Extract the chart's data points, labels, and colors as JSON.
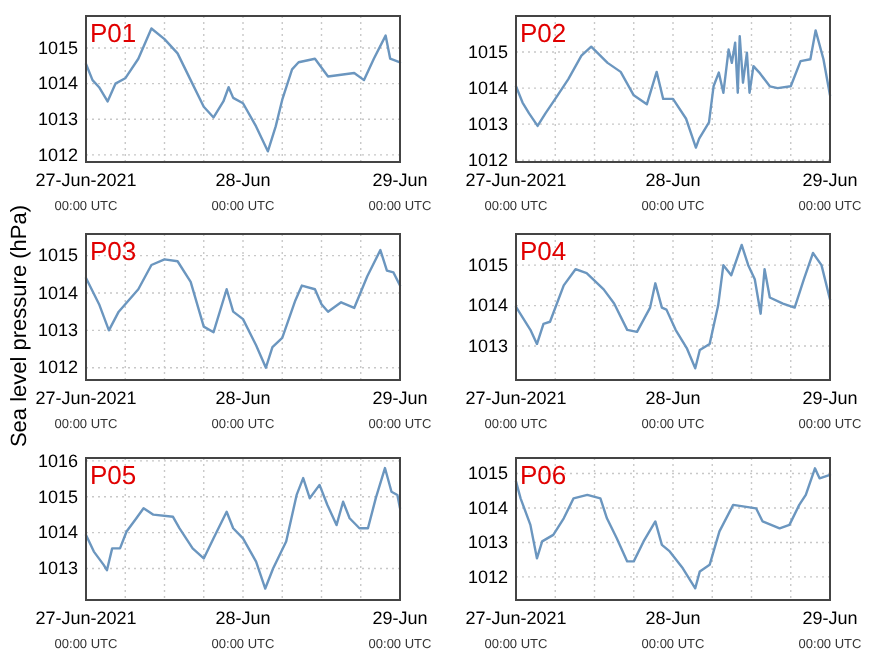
{
  "chart_data": [
    {
      "type": "line",
      "title": "P01",
      "xlim": [
        "2021-06-27T00:00",
        "2021-06-29T00:00"
      ],
      "ylim": [
        1011.8,
        1015.9
      ],
      "yticks": [
        1012,
        1013,
        1014,
        1015
      ],
      "grid": true,
      "xticks": [
        {
          "value": "2021-06-27T00:00",
          "label": "27-Jun-2021\n00:00 UTC"
        },
        {
          "value": "2021-06-27T06:00",
          "label": null
        },
        {
          "value": "2021-06-27T12:00",
          "label": null
        },
        {
          "value": "2021-06-27T18:00",
          "label": null
        },
        {
          "value": "2021-06-28T00:00",
          "label": "28-Jun\n00:00 UTC"
        },
        {
          "value": "2021-06-28T06:00",
          "label": null
        },
        {
          "value": "2021-06-28T12:00",
          "label": null
        },
        {
          "value": "2021-06-28T18:00",
          "label": null
        },
        {
          "value": "2021-06-29T00:00",
          "label": "29-Jun\n00:00 UTC"
        }
      ],
      "x": [
        "2021-06-27T00:00",
        "2021-06-27T01:00",
        "2021-06-27T02:00",
        "2021-06-27T03:18",
        "2021-06-27T04:30",
        "2021-06-27T06:00",
        "2021-06-27T08:00",
        "2021-06-27T10:00",
        "2021-06-27T12:00",
        "2021-06-27T14:00",
        "2021-06-27T16:00",
        "2021-06-27T18:00",
        "2021-06-27T19:30",
        "2021-06-27T21:00",
        "2021-06-27T21:48",
        "2021-06-27T22:30",
        "2021-06-28T00:00",
        "2021-06-28T02:00",
        "2021-06-28T03:48",
        "2021-06-28T05:00",
        "2021-06-28T06:00",
        "2021-06-28T07:30",
        "2021-06-28T08:30",
        "2021-06-28T11:00",
        "2021-06-28T13:00",
        "2021-06-28T15:00",
        "2021-06-28T17:00",
        "2021-06-28T18:30",
        "2021-06-28T20:00",
        "2021-06-28T21:48",
        "2021-06-28T22:30",
        "2021-06-29T00:00"
      ],
      "series": [
        {
          "color": "#6b96bf",
          "values": [
            1014.55,
            1014.1,
            1013.9,
            1013.5,
            1014.0,
            1014.15,
            1014.7,
            1015.55,
            1015.25,
            1014.85,
            1014.1,
            1013.35,
            1013.05,
            1013.5,
            1013.9,
            1013.6,
            1013.45,
            1012.8,
            1012.1,
            1012.8,
            1013.55,
            1014.4,
            1014.6,
            1014.7,
            1014.2,
            1014.25,
            1014.3,
            1014.1,
            1014.7,
            1015.35,
            1014.7,
            1014.6
          ]
        }
      ]
    },
    {
      "type": "line",
      "title": "P02",
      "xlim": [
        "2021-06-27T00:00",
        "2021-06-29T00:00"
      ],
      "ylim": [
        1011.95,
        1016
      ],
      "yticks": [
        1012,
        1013,
        1014,
        1015
      ],
      "grid": true,
      "xticks": [
        {
          "value": "2021-06-27T00:00",
          "label": "27-Jun-2021\n00:00 UTC"
        },
        {
          "value": "2021-06-27T06:00",
          "label": null
        },
        {
          "value": "2021-06-27T12:00",
          "label": null
        },
        {
          "value": "2021-06-27T18:00",
          "label": null
        },
        {
          "value": "2021-06-28T00:00",
          "label": "28-Jun\n00:00 UTC"
        },
        {
          "value": "2021-06-28T06:00",
          "label": null
        },
        {
          "value": "2021-06-28T12:00",
          "label": null
        },
        {
          "value": "2021-06-28T18:00",
          "label": null
        },
        {
          "value": "2021-06-29T00:00",
          "label": "29-Jun\n00:00 UTC"
        }
      ],
      "x": [
        "2021-06-27T00:00",
        "2021-06-27T01:00",
        "2021-06-27T02:00",
        "2021-06-27T03:18",
        "2021-06-27T04:30",
        "2021-06-27T06:00",
        "2021-06-27T08:00",
        "2021-06-27T10:00",
        "2021-06-27T11:30",
        "2021-06-27T14:00",
        "2021-06-27T16:00",
        "2021-06-27T18:00",
        "2021-06-27T20:00",
        "2021-06-27T21:30",
        "2021-06-27T22:30",
        "2021-06-28T00:00",
        "2021-06-28T02:00",
        "2021-06-28T03:30",
        "2021-06-28T04:00",
        "2021-06-28T05:30",
        "2021-06-28T06:12",
        "2021-06-28T07:00",
        "2021-06-28T07:42",
        "2021-06-28T08:30",
        "2021-06-28T09:00",
        "2021-06-28T09:30",
        "2021-06-28T09:54",
        "2021-06-28T10:12",
        "2021-06-28T10:42",
        "2021-06-28T11:18",
        "2021-06-28T11:42",
        "2021-06-28T12:18",
        "2021-06-28T13:12",
        "2021-06-28T14:48",
        "2021-06-28T16:00",
        "2021-06-28T18:00",
        "2021-06-28T19:30",
        "2021-06-28T21:00",
        "2021-06-28T21:48",
        "2021-06-28T23:00",
        "2021-06-29T00:00"
      ],
      "series": [
        {
          "color": "#6b96bf",
          "values": [
            1014.05,
            1013.6,
            1013.3,
            1012.95,
            1013.3,
            1013.7,
            1014.25,
            1014.9,
            1015.15,
            1014.7,
            1014.45,
            1013.8,
            1013.55,
            1014.45,
            1013.7,
            1013.7,
            1013.15,
            1012.35,
            1012.6,
            1013.05,
            1014.05,
            1014.43,
            1013.87,
            1015.07,
            1014.7,
            1015.26,
            1013.87,
            1015.44,
            1014.15,
            1014.98,
            1013.87,
            1014.61,
            1014.43,
            1014.05,
            1014.0,
            1014.05,
            1014.75,
            1014.8,
            1015.6,
            1014.8,
            1013.8
          ]
        }
      ]
    },
    {
      "type": "line",
      "title": "P03",
      "ylabel": "Sea level pressure (hPa)",
      "xlim": [
        "2021-06-27T00:00",
        "2021-06-29T00:00"
      ],
      "ylim": [
        1011.67,
        1015.58
      ],
      "yticks": [
        1012,
        1013,
        1014,
        1015
      ],
      "grid": true,
      "xticks": [
        {
          "value": "2021-06-27T00:00",
          "label": "27-Jun-2021\n00:00 UTC"
        },
        {
          "value": "2021-06-27T06:00",
          "label": null
        },
        {
          "value": "2021-06-27T12:00",
          "label": null
        },
        {
          "value": "2021-06-27T18:00",
          "label": null
        },
        {
          "value": "2021-06-28T00:00",
          "label": "28-Jun\n00:00 UTC"
        },
        {
          "value": "2021-06-28T06:00",
          "label": null
        },
        {
          "value": "2021-06-28T12:00",
          "label": null
        },
        {
          "value": "2021-06-28T18:00",
          "label": null
        },
        {
          "value": "2021-06-29T00:00",
          "label": "29-Jun\n00:00 UTC"
        }
      ],
      "x": [
        "2021-06-27T00:00",
        "2021-06-27T02:00",
        "2021-06-27T03:30",
        "2021-06-27T05:00",
        "2021-06-27T08:00",
        "2021-06-27T10:00",
        "2021-06-27T12:00",
        "2021-06-27T14:00",
        "2021-06-27T16:00",
        "2021-06-27T18:00",
        "2021-06-27T19:30",
        "2021-06-27T21:30",
        "2021-06-27T22:30",
        "2021-06-28T00:00",
        "2021-06-28T02:00",
        "2021-06-28T03:30",
        "2021-06-28T04:30",
        "2021-06-28T06:00",
        "2021-06-28T08:00",
        "2021-06-28T09:00",
        "2021-06-28T11:00",
        "2021-06-28T12:00",
        "2021-06-28T13:00",
        "2021-06-28T15:00",
        "2021-06-28T17:00",
        "2021-06-28T19:00",
        "2021-06-28T21:00",
        "2021-06-28T22:00",
        "2021-06-28T23:00",
        "2021-06-29T00:00"
      ],
      "series": [
        {
          "color": "#6b96bf",
          "values": [
            1014.4,
            1013.7,
            1013.0,
            1013.5,
            1014.1,
            1014.75,
            1014.9,
            1014.85,
            1014.3,
            1013.1,
            1012.95,
            1014.1,
            1013.5,
            1013.3,
            1012.6,
            1012.0,
            1012.55,
            1012.8,
            1013.8,
            1014.2,
            1014.1,
            1013.7,
            1013.5,
            1013.75,
            1013.6,
            1014.45,
            1015.15,
            1014.6,
            1014.55,
            1014.2
          ]
        }
      ]
    },
    {
      "type": "line",
      "title": "P04",
      "xlim": [
        "2021-06-27T00:00",
        "2021-06-29T00:00"
      ],
      "ylim": [
        1012.16,
        1015.77
      ],
      "yticks": [
        1013,
        1014,
        1015
      ],
      "grid": true,
      "xticks": [
        {
          "value": "2021-06-27T00:00",
          "label": "27-Jun-2021\n00:00 UTC"
        },
        {
          "value": "2021-06-27T06:00",
          "label": null
        },
        {
          "value": "2021-06-27T12:00",
          "label": null
        },
        {
          "value": "2021-06-27T18:00",
          "label": null
        },
        {
          "value": "2021-06-28T00:00",
          "label": "28-Jun\n00:00 UTC"
        },
        {
          "value": "2021-06-28T06:00",
          "label": null
        },
        {
          "value": "2021-06-28T12:00",
          "label": null
        },
        {
          "value": "2021-06-28T18:00",
          "label": null
        },
        {
          "value": "2021-06-29T00:00",
          "label": "29-Jun\n00:00 UTC"
        }
      ],
      "x": [
        "2021-06-27T00:00",
        "2021-06-27T02:12",
        "2021-06-27T03:12",
        "2021-06-27T04:12",
        "2021-06-27T05:12",
        "2021-06-27T07:18",
        "2021-06-27T09:06",
        "2021-06-27T10:48",
        "2021-06-27T13:24",
        "2021-06-27T15:00",
        "2021-06-27T17:00",
        "2021-06-27T18:30",
        "2021-06-27T20:30",
        "2021-06-27T21:18",
        "2021-06-27T22:18",
        "2021-06-27T23:00",
        "2021-06-28T00:24",
        "2021-06-28T02:06",
        "2021-06-28T03:24",
        "2021-06-28T04:06",
        "2021-06-28T05:36",
        "2021-06-28T06:54",
        "2021-06-28T07:42",
        "2021-06-28T08:54",
        "2021-06-28T10:30",
        "2021-06-28T11:30",
        "2021-06-28T12:30",
        "2021-06-28T13:24",
        "2021-06-28T14:00",
        "2021-06-28T14:48",
        "2021-06-28T16:48",
        "2021-06-28T18:36",
        "2021-06-28T20:00",
        "2021-06-28T21:24",
        "2021-06-28T22:42",
        "2021-06-29T00:00"
      ],
      "series": [
        {
          "color": "#6b96bf",
          "values": [
            1013.97,
            1013.4,
            1013.05,
            1013.55,
            1013.6,
            1014.5,
            1014.9,
            1014.8,
            1014.4,
            1014.05,
            1013.4,
            1013.35,
            1013.95,
            1014.55,
            1013.95,
            1013.9,
            1013.4,
            1012.95,
            1012.45,
            1012.9,
            1013.05,
            1014.0,
            1015.0,
            1014.75,
            1015.5,
            1015.0,
            1014.65,
            1013.8,
            1014.9,
            1014.2,
            1014.05,
            1013.95,
            1014.65,
            1015.3,
            1015.0,
            1014.15
          ]
        }
      ]
    },
    {
      "type": "line",
      "title": "P05",
      "xlim": [
        "2021-06-27T00:00",
        "2021-06-29T00:00"
      ],
      "ylim": [
        1012.12,
        1016.08
      ],
      "yticks": [
        1013,
        1014,
        1015,
        1016
      ],
      "grid": true,
      "xticks": [
        {
          "value": "2021-06-27T00:00",
          "label": "27-Jun-2021\n00:00 UTC"
        },
        {
          "value": "2021-06-27T06:00",
          "label": null
        },
        {
          "value": "2021-06-27T12:00",
          "label": null
        },
        {
          "value": "2021-06-27T18:00",
          "label": null
        },
        {
          "value": "2021-06-28T00:00",
          "label": "28-Jun\n00:00 UTC"
        },
        {
          "value": "2021-06-28T06:00",
          "label": null
        },
        {
          "value": "2021-06-28T12:00",
          "label": null
        },
        {
          "value": "2021-06-28T18:00",
          "label": null
        },
        {
          "value": "2021-06-29T00:00",
          "label": "29-Jun\n00:00 UTC"
        }
      ],
      "x": [
        "2021-06-27T00:00",
        "2021-06-27T01:12",
        "2021-06-27T02:42",
        "2021-06-27T03:12",
        "2021-06-27T04:00",
        "2021-06-27T05:12",
        "2021-06-27T06:12",
        "2021-06-27T07:42",
        "2021-06-27T08:48",
        "2021-06-27T10:18",
        "2021-06-27T13:18",
        "2021-06-27T14:18",
        "2021-06-27T16:18",
        "2021-06-27T18:00",
        "2021-06-27T19:30",
        "2021-06-27T21:30",
        "2021-06-27T22:30",
        "2021-06-28T00:00",
        "2021-06-28T02:00",
        "2021-06-28T03:24",
        "2021-06-28T04:36",
        "2021-06-28T06:36",
        "2021-06-28T08:12",
        "2021-06-28T09:12",
        "2021-06-28T10:12",
        "2021-06-28T11:42",
        "2021-06-28T12:54",
        "2021-06-28T14:18",
        "2021-06-28T15:18",
        "2021-06-28T16:18",
        "2021-06-28T17:48",
        "2021-06-28T19:06",
        "2021-06-28T20:18",
        "2021-06-28T21:42",
        "2021-06-28T22:42",
        "2021-06-28T23:36",
        "2021-06-29T00:00"
      ],
      "series": [
        {
          "color": "#6b96bf",
          "values": [
            1013.93,
            1013.47,
            1013.1,
            1012.95,
            1013.56,
            1013.56,
            1014.03,
            1014.4,
            1014.68,
            1014.5,
            1014.44,
            1014.12,
            1013.56,
            1013.28,
            1013.84,
            1014.58,
            1014.12,
            1013.84,
            1013.19,
            1012.44,
            1013.0,
            1013.75,
            1015.05,
            1015.52,
            1014.96,
            1015.33,
            1014.77,
            1014.21,
            1014.86,
            1014.4,
            1014.12,
            1014.12,
            1014.96,
            1015.8,
            1015.14,
            1015.05,
            1014.68
          ]
        }
      ]
    },
    {
      "type": "line",
      "title": "P06",
      "xlim": [
        "2021-06-27T00:00",
        "2021-06-29T00:00"
      ],
      "ylim": [
        1011.33,
        1015.45
      ],
      "yticks": [
        1012,
        1013,
        1014,
        1015
      ],
      "grid": true,
      "xticks": [
        {
          "value": "2021-06-27T00:00",
          "label": "27-Jun-2021\n00:00 UTC"
        },
        {
          "value": "2021-06-27T06:00",
          "label": null
        },
        {
          "value": "2021-06-27T12:00",
          "label": null
        },
        {
          "value": "2021-06-27T18:00",
          "label": null
        },
        {
          "value": "2021-06-28T00:00",
          "label": "28-Jun\n00:00 UTC"
        },
        {
          "value": "2021-06-28T06:00",
          "label": null
        },
        {
          "value": "2021-06-28T12:00",
          "label": null
        },
        {
          "value": "2021-06-28T18:00",
          "label": null
        },
        {
          "value": "2021-06-29T00:00",
          "label": "29-Jun\n00:00 UTC"
        }
      ],
      "x": [
        "2021-06-27T00:00",
        "2021-06-27T00:42",
        "2021-06-27T02:12",
        "2021-06-27T03:12",
        "2021-06-27T04:00",
        "2021-06-27T05:42",
        "2021-06-27T07:18",
        "2021-06-27T08:48",
        "2021-06-27T10:54",
        "2021-06-27T12:54",
        "2021-06-27T13:54",
        "2021-06-27T15:24",
        "2021-06-27T17:00",
        "2021-06-27T18:00",
        "2021-06-27T19:30",
        "2021-06-27T21:18",
        "2021-06-27T22:18",
        "2021-06-27T23:30",
        "2021-06-28T01:30",
        "2021-06-28T03:24",
        "2021-06-28T04:06",
        "2021-06-28T05:36",
        "2021-06-28T07:06",
        "2021-06-28T09:12",
        "2021-06-28T12:42",
        "2021-06-28T13:42",
        "2021-06-28T16:18",
        "2021-06-28T17:48",
        "2021-06-28T19:18",
        "2021-06-28T20:18",
        "2021-06-28T21:42",
        "2021-06-28T22:24",
        "2021-06-29T00:00"
      ],
      "series": [
        {
          "color": "#6b96bf",
          "values": [
            1014.77,
            1014.28,
            1013.51,
            1012.54,
            1013.03,
            1013.22,
            1013.7,
            1014.28,
            1014.38,
            1014.28,
            1013.7,
            1013.12,
            1012.45,
            1012.45,
            1013.03,
            1013.61,
            1012.93,
            1012.74,
            1012.25,
            1011.67,
            1012.16,
            1012.35,
            1013.32,
            1014.09,
            1013.99,
            1013.61,
            1013.41,
            1013.51,
            1014.09,
            1014.38,
            1015.15,
            1014.86,
            1014.96
          ]
        }
      ]
    }
  ]
}
